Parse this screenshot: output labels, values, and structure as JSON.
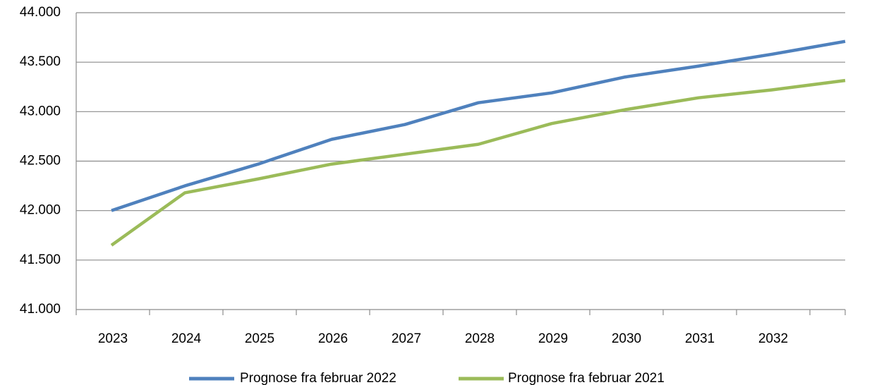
{
  "chart_data": {
    "type": "line",
    "categories": [
      "2023",
      "2024",
      "2025",
      "2026",
      "2027",
      "2028",
      "2029",
      "2030",
      "2031",
      "2032",
      null
    ],
    "series": [
      {
        "name": "Prognose fra februar 2022",
        "color": "#4f81bd",
        "values": [
          42000,
          42250,
          42470,
          42720,
          42870,
          43090,
          43190,
          43350,
          43460,
          43580,
          43710
        ]
      },
      {
        "name": "Prognose fra februar 2021",
        "color": "#9bbb59",
        "values": [
          41650,
          42180,
          42320,
          42470,
          42570,
          42670,
          42880,
          43020,
          43140,
          43220,
          43315
        ]
      }
    ],
    "ylim": [
      41000,
      44000
    ],
    "yticks": [
      {
        "value": 41000,
        "label": "41.000"
      },
      {
        "value": 41500,
        "label": "41.500"
      },
      {
        "value": 42000,
        "label": "42.000"
      },
      {
        "value": 42500,
        "label": "42.500"
      },
      {
        "value": 43000,
        "label": "43.000"
      },
      {
        "value": 43500,
        "label": "43.500"
      },
      {
        "value": 44000,
        "label": "44.000"
      }
    ],
    "grid": true,
    "legend": "bottom"
  }
}
